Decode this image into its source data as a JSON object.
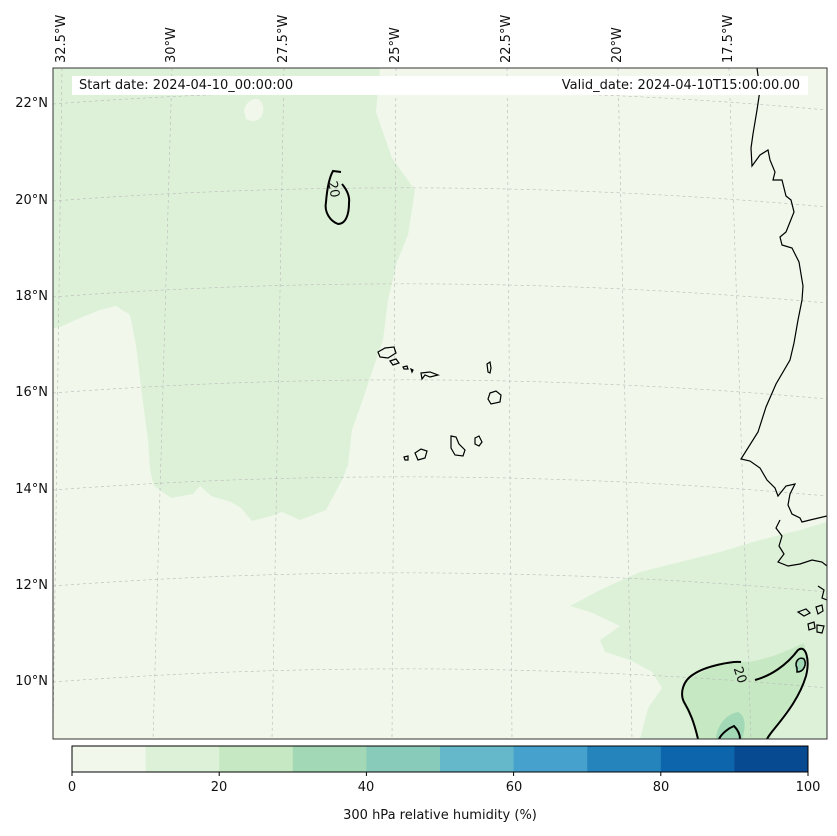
{
  "header": {
    "start_date": "Start date: 2024-04-10_00:00:00",
    "valid_date": "Valid_date: 2024-04-10T15:00:00.00"
  },
  "map": {
    "lat_labels": [
      "22°N",
      "20°N",
      "18°N",
      "16°N",
      "14°N",
      "12°N",
      "10°N"
    ],
    "lon_labels": [
      "32.5°W",
      "30°W",
      "27.5°W",
      "25°W",
      "22.5°W",
      "20°W",
      "17.5°W"
    ],
    "contour_labels": [
      "20",
      "20"
    ],
    "colors": {
      "rh_0_10": "#f1f8eb",
      "rh_10_20": "#ddf1d9",
      "rh_20_30": "#c6e8c2",
      "rh_30_40": "#a3d8b6",
      "coastline": "#000000",
      "gridline": "#b8b8b8"
    }
  },
  "colorbar": {
    "title": "300 hPa relative humidity (%)",
    "ticks": [
      "0",
      "20",
      "40",
      "60",
      "80",
      "100"
    ],
    "colors": [
      "#f1f8eb",
      "#ddf1d9",
      "#c6e8c2",
      "#a3d8b6",
      "#88cbbb",
      "#64b8c9",
      "#46a2cc",
      "#2684bd",
      "#0d66ac",
      "#084a91"
    ]
  }
}
